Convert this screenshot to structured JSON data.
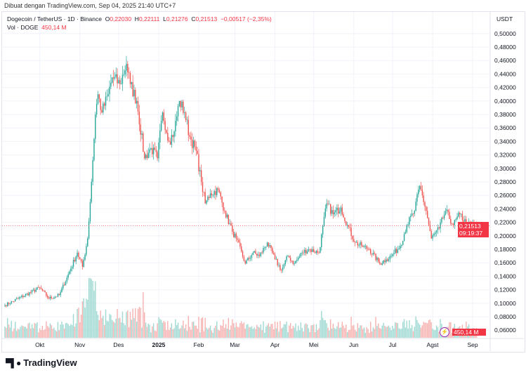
{
  "credit": "Dibuat dengan TradingView.com, Sep 04, 2025 21:40 UTC+7",
  "legend": {
    "symbol": "Dogecoin / TetherUS · 1D · Binance",
    "o_label": "O",
    "o": "0,22030",
    "h_label": "H",
    "h": "0,22111",
    "l_label": "L",
    "l": "0,21276",
    "c_label": "C",
    "c": "0,21513",
    "change": "−0,00517 (−2,35%)",
    "vol_label": "Vol · DOGE",
    "vol": "450,14 M"
  },
  "currency": "USDT",
  "last_price_label": "0,21513",
  "countdown": "09:19:37",
  "volume_label": "450,14 M",
  "logo_text": "TradingView",
  "colors": {
    "up": "#26a69a",
    "down": "#ef5350",
    "accent": "#f23645",
    "volume_up": "#9fd9d2",
    "volume_down": "#f6b2b0"
  },
  "chart_data": {
    "type": "candlestick",
    "title": "Dogecoin / TetherUS · 1D · Binance",
    "ylabel": "USDT",
    "ylim": [
      0.05,
      0.5
    ],
    "yticks": [
      "0,50000",
      "0,48000",
      "0,46000",
      "0,44000",
      "0,42000",
      "0,40000",
      "0,38000",
      "0,36000",
      "0,34000",
      "0,32000",
      "0,30000",
      "0,28000",
      "0,26000",
      "0,24000",
      "0,22000",
      "0,20000",
      "0,18000",
      "0,16000",
      "0,14000",
      "0,12000",
      "0,10000",
      "0,08000",
      "0,06000"
    ],
    "xticks": [
      {
        "label": "Okt",
        "date": "2024-10-01",
        "bold": false
      },
      {
        "label": "Nov",
        "date": "2024-11-01",
        "bold": false
      },
      {
        "label": "Des",
        "date": "2024-12-01",
        "bold": false
      },
      {
        "label": "2025",
        "date": "2025-01-01",
        "bold": true
      },
      {
        "label": "Feb",
        "date": "2025-02-01",
        "bold": false
      },
      {
        "label": "Mar",
        "date": "2025-03-01",
        "bold": false
      },
      {
        "label": "Apr",
        "date": "2025-04-01",
        "bold": false
      },
      {
        "label": "Mei",
        "date": "2025-05-01",
        "bold": false
      },
      {
        "label": "Jun",
        "date": "2025-06-01",
        "bold": false
      },
      {
        "label": "Jul",
        "date": "2025-07-01",
        "bold": false
      },
      {
        "label": "Agst",
        "date": "2025-08-01",
        "bold": false
      },
      {
        "label": "Sep",
        "date": "2025-09-01",
        "bold": false
      }
    ],
    "xrange": [
      "2024-09-04",
      "2025-09-04"
    ],
    "grid": true,
    "close_points": [
      [
        "2024-09-04",
        0.097
      ],
      [
        "2024-10-01",
        0.123
      ],
      [
        "2024-10-08",
        0.107
      ],
      [
        "2024-10-16",
        0.112
      ],
      [
        "2024-10-22",
        0.138
      ],
      [
        "2024-10-30",
        0.175
      ],
      [
        "2024-11-03",
        0.154
      ],
      [
        "2024-11-07",
        0.196
      ],
      [
        "2024-11-10",
        0.28
      ],
      [
        "2024-11-13",
        0.38
      ],
      [
        "2024-11-15",
        0.41
      ],
      [
        "2024-11-18",
        0.383
      ],
      [
        "2024-11-23",
        0.41
      ],
      [
        "2024-11-26",
        0.435
      ],
      [
        "2024-12-02",
        0.425
      ],
      [
        "2024-12-07",
        0.455
      ],
      [
        "2024-12-10",
        0.425
      ],
      [
        "2024-12-15",
        0.4
      ],
      [
        "2024-12-21",
        0.315
      ],
      [
        "2024-12-26",
        0.33
      ],
      [
        "2024-12-31",
        0.315
      ],
      [
        "2025-01-04",
        0.383
      ],
      [
        "2025-01-09",
        0.34
      ],
      [
        "2025-01-13",
        0.355
      ],
      [
        "2025-01-17",
        0.4
      ],
      [
        "2025-01-21",
        0.383
      ],
      [
        "2025-01-25",
        0.347
      ],
      [
        "2025-01-30",
        0.326
      ],
      [
        "2025-02-03",
        0.28
      ],
      [
        "2025-02-06",
        0.248
      ],
      [
        "2025-02-10",
        0.263
      ],
      [
        "2025-02-16",
        0.268
      ],
      [
        "2025-02-21",
        0.237
      ],
      [
        "2025-02-27",
        0.206
      ],
      [
        "2025-03-02",
        0.196
      ],
      [
        "2025-03-09",
        0.159
      ],
      [
        "2025-03-15",
        0.175
      ],
      [
        "2025-03-20",
        0.17
      ],
      [
        "2025-03-26",
        0.19
      ],
      [
        "2025-04-01",
        0.165
      ],
      [
        "2025-04-06",
        0.149
      ],
      [
        "2025-04-11",
        0.17
      ],
      [
        "2025-04-16",
        0.159
      ],
      [
        "2025-04-22",
        0.175
      ],
      [
        "2025-04-27",
        0.18
      ],
      [
        "2025-05-05",
        0.175
      ],
      [
        "2025-05-11",
        0.248
      ],
      [
        "2025-05-16",
        0.232
      ],
      [
        "2025-05-22",
        0.242
      ],
      [
        "2025-05-27",
        0.216
      ],
      [
        "2025-06-02",
        0.19
      ],
      [
        "2025-06-07",
        0.185
      ],
      [
        "2025-06-13",
        0.18
      ],
      [
        "2025-06-21",
        0.159
      ],
      [
        "2025-06-26",
        0.165
      ],
      [
        "2025-06-30",
        0.17
      ],
      [
        "2025-07-07",
        0.185
      ],
      [
        "2025-07-12",
        0.216
      ],
      [
        "2025-07-18",
        0.237
      ],
      [
        "2025-07-22",
        0.274
      ],
      [
        "2025-07-27",
        0.237
      ],
      [
        "2025-07-31",
        0.196
      ],
      [
        "2025-08-06",
        0.211
      ],
      [
        "2025-08-11",
        0.237
      ],
      [
        "2025-08-17",
        0.216
      ],
      [
        "2025-08-22",
        0.232
      ],
      [
        "2025-08-28",
        0.216
      ],
      [
        "2025-09-04",
        0.21513
      ]
    ],
    "last": {
      "open": 0.2203,
      "high": 0.22111,
      "low": 0.21276,
      "close": 0.21513,
      "volume": "450,14 M"
    }
  }
}
